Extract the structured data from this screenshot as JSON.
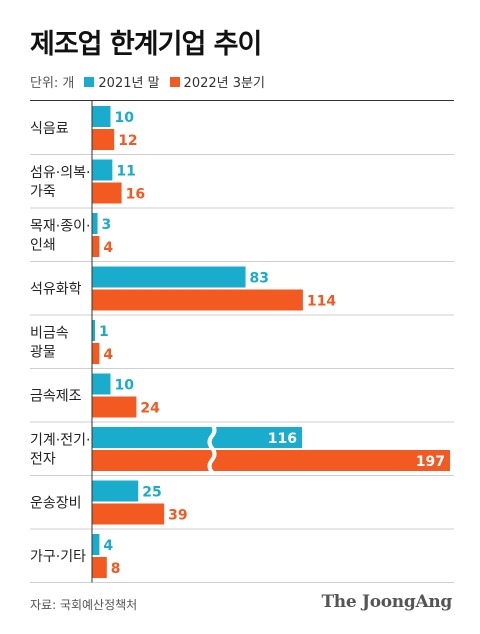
{
  "title": "제조업 한계기업 추이",
  "unit_label": "단위: 개",
  "source": "자료: 국회예산정책처",
  "brand": "The JoongAng",
  "colors": {
    "series1": "#1aaccc",
    "series2": "#f25a22"
  },
  "chart_data": {
    "type": "bar",
    "orientation": "horizontal",
    "categories": [
      "식음료",
      "섬유·의복·가죽",
      "목재·종이·인쇄",
      "석유화학",
      "비금속 광물",
      "금속제조",
      "기계·전기·전자",
      "운송장비",
      "가구·기타"
    ],
    "category_lines": [
      [
        "식음료"
      ],
      [
        "섬유·의복·",
        "가죽"
      ],
      [
        "목재·종이·",
        "인쇄"
      ],
      [
        "석유화학"
      ],
      [
        "비금속",
        "광물"
      ],
      [
        "금속제조"
      ],
      [
        "기계·전기·",
        "전자"
      ],
      [
        "운송장비"
      ],
      [
        "가구·기타"
      ]
    ],
    "series": [
      {
        "name": "2021년 말",
        "values": [
          10,
          11,
          3,
          83,
          1,
          10,
          116,
          25,
          4
        ]
      },
      {
        "name": "2022년 3분기",
        "values": [
          12,
          16,
          4,
          114,
          4,
          24,
          197,
          39,
          8
        ]
      }
    ],
    "axis_break": true,
    "grid": false,
    "legend_position": "top-left"
  }
}
